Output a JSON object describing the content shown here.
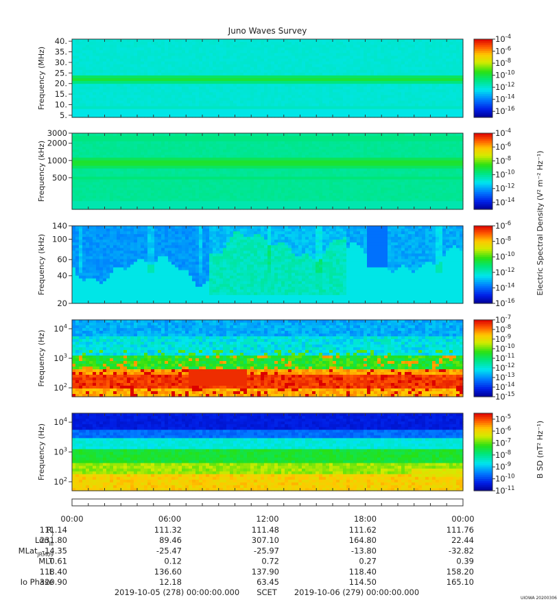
{
  "chart_data": {
    "title": "Juno Waves Survey",
    "type": "heatmap",
    "panels": [
      {
        "id": "hfr_high",
        "ylabel": "Frequency (MHz)",
        "yscale": "linear",
        "ylim": [
          4,
          41
        ],
        "yticks": [
          {
            "v": 5,
            "label": "5."
          },
          {
            "v": 10,
            "label": "10."
          },
          {
            "v": 15,
            "label": "15."
          },
          {
            "v": 20,
            "label": "20."
          },
          {
            "v": 25,
            "label": "25."
          },
          {
            "v": 30,
            "label": "30."
          },
          {
            "v": 35,
            "label": "35."
          },
          {
            "v": 40,
            "label": "40."
          }
        ],
        "colorbar": {
          "min_exp": -17,
          "max_exp": -4,
          "ticks": [
            "-4",
            "-6",
            "-8",
            "-10",
            "-12",
            "-14",
            "-16"
          ]
        },
        "style": "hfr_high"
      },
      {
        "id": "hfr_low",
        "ylabel": "Frequency (kHz)",
        "yscale": "log",
        "ylim": [
          140,
          3000
        ],
        "yticks": [
          {
            "v": 500,
            "label": "500"
          },
          {
            "v": 1000,
            "label": "1000"
          },
          {
            "v": 2000,
            "label": "2000"
          },
          {
            "v": 3000,
            "label": "3000"
          }
        ],
        "colorbar": {
          "min_exp": -15,
          "max_exp": -4,
          "ticks": [
            "-4",
            "-6",
            "-8",
            "-10",
            "-12",
            "-14"
          ]
        },
        "style": "hfr_low"
      },
      {
        "id": "lfr_high",
        "ylabel": "Frequency (kHz)",
        "yscale": "log",
        "ylim": [
          20,
          140
        ],
        "yticks": [
          {
            "v": 20,
            "label": "20"
          },
          {
            "v": 40,
            "label": "40"
          },
          {
            "v": 60,
            "label": "60"
          },
          {
            "v": 100,
            "label": "100"
          },
          {
            "v": 140,
            "label": "140"
          }
        ],
        "colorbar": {
          "min_exp": -16,
          "max_exp": -6,
          "ticks": [
            "-6",
            "-8",
            "-10",
            "-12",
            "-14",
            "-16"
          ]
        },
        "style": "lfr_high"
      },
      {
        "id": "lfr_low_e",
        "ylabel": "Frequency (Hz)",
        "yscale": "log",
        "ylim": [
          50,
          20000
        ],
        "yticks": [
          {
            "v": 100,
            "label": "10",
            "sup": "2"
          },
          {
            "v": 1000,
            "label": "10",
            "sup": "3"
          },
          {
            "v": 10000,
            "label": "10",
            "sup": "4"
          }
        ],
        "colorbar": {
          "min_exp": -15,
          "max_exp": -7,
          "ticks": [
            "-7",
            "-8",
            "-9",
            "-10",
            "-11",
            "-12",
            "-13",
            "-14",
            "-15"
          ]
        },
        "style": "lfr_low_e"
      },
      {
        "id": "lfr_low_b",
        "ylabel": "Frequency (Hz)",
        "yscale": "log",
        "ylim": [
          50,
          20000
        ],
        "yticks": [
          {
            "v": 100,
            "label": "10",
            "sup": "2"
          },
          {
            "v": 1000,
            "label": "10",
            "sup": "3"
          },
          {
            "v": 10000,
            "label": "10",
            "sup": "4"
          }
        ],
        "colorbar": {
          "min_exp": -11,
          "max_exp": -4.5,
          "ticks": [
            "-5",
            "-6",
            "-7",
            "-8",
            "-9",
            "-10",
            "-11"
          ]
        },
        "style": "lfr_low_b"
      }
    ],
    "colorbar_labels": {
      "e_field": "Electric Spectral Density (V² m⁻² Hz⁻¹)",
      "b_field": "B SD (nT² Hz⁻¹)"
    },
    "x_ticks": [
      "00:00",
      "06:00",
      "12:00",
      "18:00",
      "00:00"
    ],
    "ephemeris": [
      {
        "label": "R",
        "sub": "J",
        "values": [
          "111.14",
          "111.32",
          "111.48",
          "111.62",
          "111.76"
        ]
      },
      {
        "label": "Lon",
        "sub": "III",
        "values": [
          "231.80",
          "89.46",
          "307.10",
          "164.80",
          "22.44"
        ]
      },
      {
        "label": "MLat",
        "sub": "JRM09",
        "values": [
          "-14.35",
          "-25.47",
          "-25.97",
          "-13.80",
          "-32.82"
        ]
      },
      {
        "label": "MLT",
        "sub": "",
        "values": [
          "0.61",
          "0.12",
          "0.72",
          "0.27",
          "0.39"
        ]
      },
      {
        "label": "L",
        "sub": "",
        "values": [
          "118.40",
          "136.60",
          "137.90",
          "118.40",
          "158.20"
        ]
      },
      {
        "label": "Io Phase",
        "sub": "",
        "values": [
          "320.90",
          "12.18",
          "63.45",
          "114.50",
          "165.10"
        ]
      }
    ],
    "footer": {
      "start": "2019-10-05 (278) 00:00:00.000",
      "scet": "SCET",
      "end": "2019-10-06 (279) 00:00:00.000"
    },
    "stamp": "UIOWA 20200306"
  }
}
